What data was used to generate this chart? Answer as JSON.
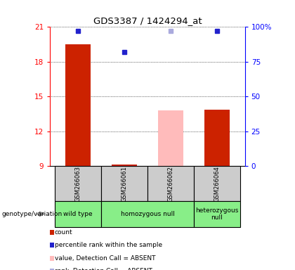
{
  "title": "GDS3387 / 1424294_at",
  "samples": [
    "GSM266063",
    "GSM266061",
    "GSM266062",
    "GSM266064"
  ],
  "bar_values": [
    19.5,
    9.15,
    13.8,
    13.85
  ],
  "bar_colors": [
    "#cc2200",
    "#cc2200",
    "#ffbbbb",
    "#cc2200"
  ],
  "percentile_values": [
    97,
    82,
    97,
    97
  ],
  "dot_colors": [
    "#2222cc",
    "#2222cc",
    "#aaaadd",
    "#2222cc"
  ],
  "ylim_left": [
    9,
    21
  ],
  "ylim_right": [
    0,
    100
  ],
  "yticks_left": [
    9,
    12,
    15,
    18,
    21
  ],
  "yticks_right": [
    0,
    25,
    50,
    75,
    100
  ],
  "ytick_labels_right": [
    "0",
    "25",
    "50",
    "75",
    "100%"
  ],
  "bar_bottom": 9.0,
  "bar_width": 0.55,
  "sample_area_color": "#cccccc",
  "genotype_label": "genotype/variation",
  "genotype_groups": [
    {
      "label": "wild type",
      "cols": 1
    },
    {
      "label": "homozygous null",
      "cols": 2
    },
    {
      "label": "heterozygous\nnull",
      "cols": 1
    }
  ],
  "genotype_color": "#88ee88",
  "legend_items": [
    {
      "label": "count",
      "color": "#cc2200"
    },
    {
      "label": "percentile rank within the sample",
      "color": "#2222cc"
    },
    {
      "label": "value, Detection Call = ABSENT",
      "color": "#ffbbbb"
    },
    {
      "label": "rank, Detection Call = ABSENT",
      "color": "#aaaadd"
    }
  ]
}
